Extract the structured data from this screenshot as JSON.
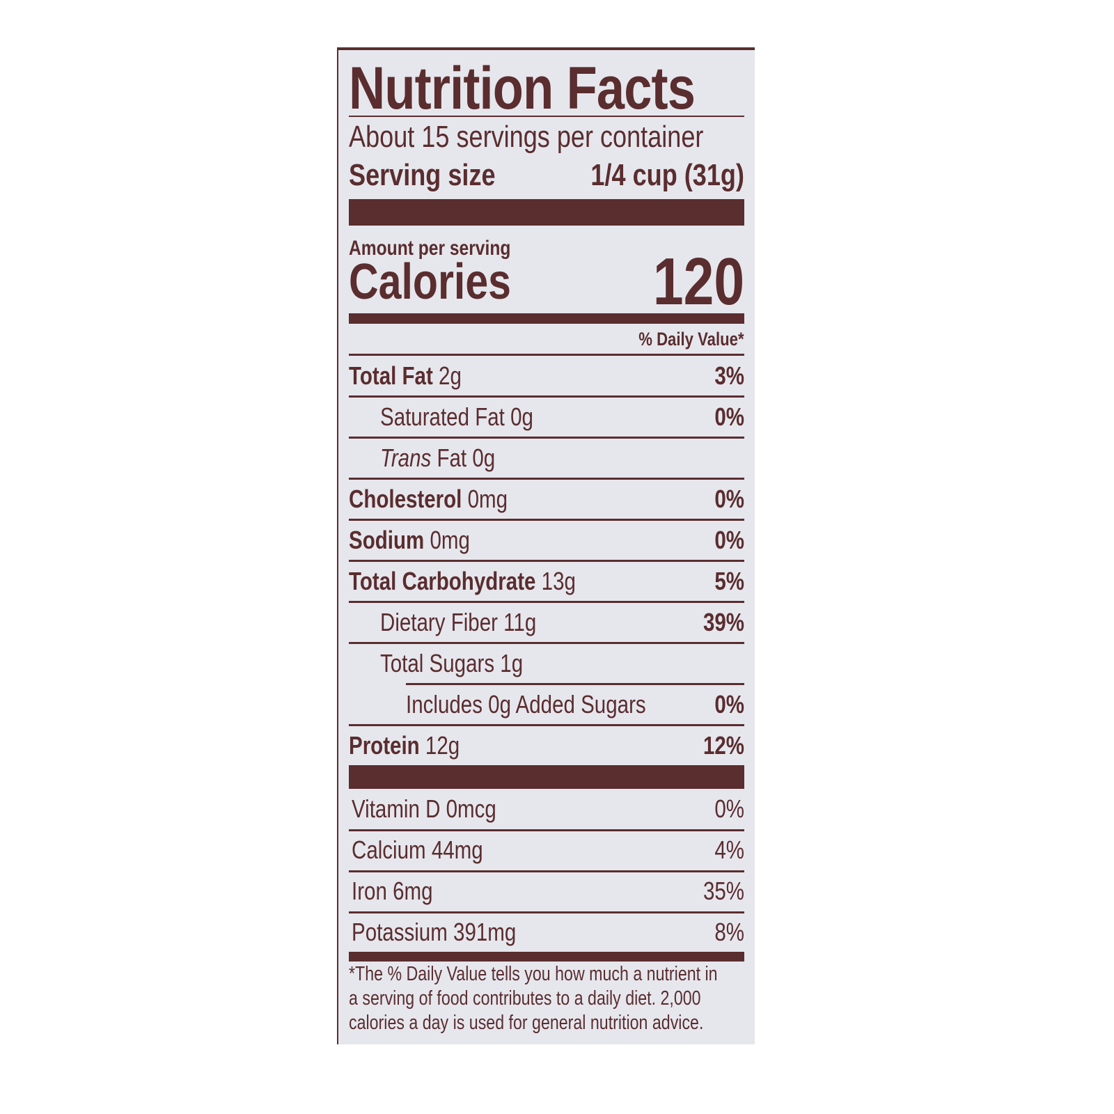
{
  "title": "Nutrition Facts",
  "servings_per_container": "About 15 servings per container",
  "serving_size": {
    "label": "Serving size",
    "value": "1/4 cup (31g)"
  },
  "amount_per_serving": "Amount per serving",
  "calories": {
    "label": "Calories",
    "value": "120"
  },
  "daily_value_header": "% Daily Value*",
  "nutrients": [
    {
      "name": "Total Fat",
      "amount": "2g",
      "dv": "3%"
    },
    {
      "name": "Saturated Fat",
      "amount": "0g",
      "dv": "0%"
    },
    {
      "name": "Trans",
      "name_rest": "Fat",
      "amount": "0g",
      "dv": ""
    },
    {
      "name": "Cholesterol",
      "amount": "0mg",
      "dv": "0%"
    },
    {
      "name": "Sodium",
      "amount": "0mg",
      "dv": "0%"
    },
    {
      "name": "Total Carbohydrate",
      "amount": "13g",
      "dv": "5%"
    },
    {
      "name": "Dietary Fiber",
      "amount": "11g",
      "dv": "39%"
    },
    {
      "name": "Total Sugars",
      "amount": "1g",
      "dv": ""
    },
    {
      "name": "Includes 0g Added Sugars",
      "amount": "",
      "dv": "0%"
    },
    {
      "name": "Protein",
      "amount": "12g",
      "dv": "12%"
    }
  ],
  "vitamins": [
    {
      "name": "Vitamin D",
      "amount": "0mcg",
      "dv": "0%"
    },
    {
      "name": "Calcium",
      "amount": "44mg",
      "dv": "4%"
    },
    {
      "name": "Iron",
      "amount": "6mg",
      "dv": "35%"
    },
    {
      "name": "Potassium",
      "amount": "391mg",
      "dv": "8%"
    }
  ],
  "footnote": [
    "*The % Daily Value tells you how much a nutrient in",
    "a serving of food contributes to a daily diet. 2,000",
    "calories a day is used for general nutrition advice."
  ],
  "colors": {
    "ink": "#5a2d2f",
    "background": "#e6e7ed"
  }
}
